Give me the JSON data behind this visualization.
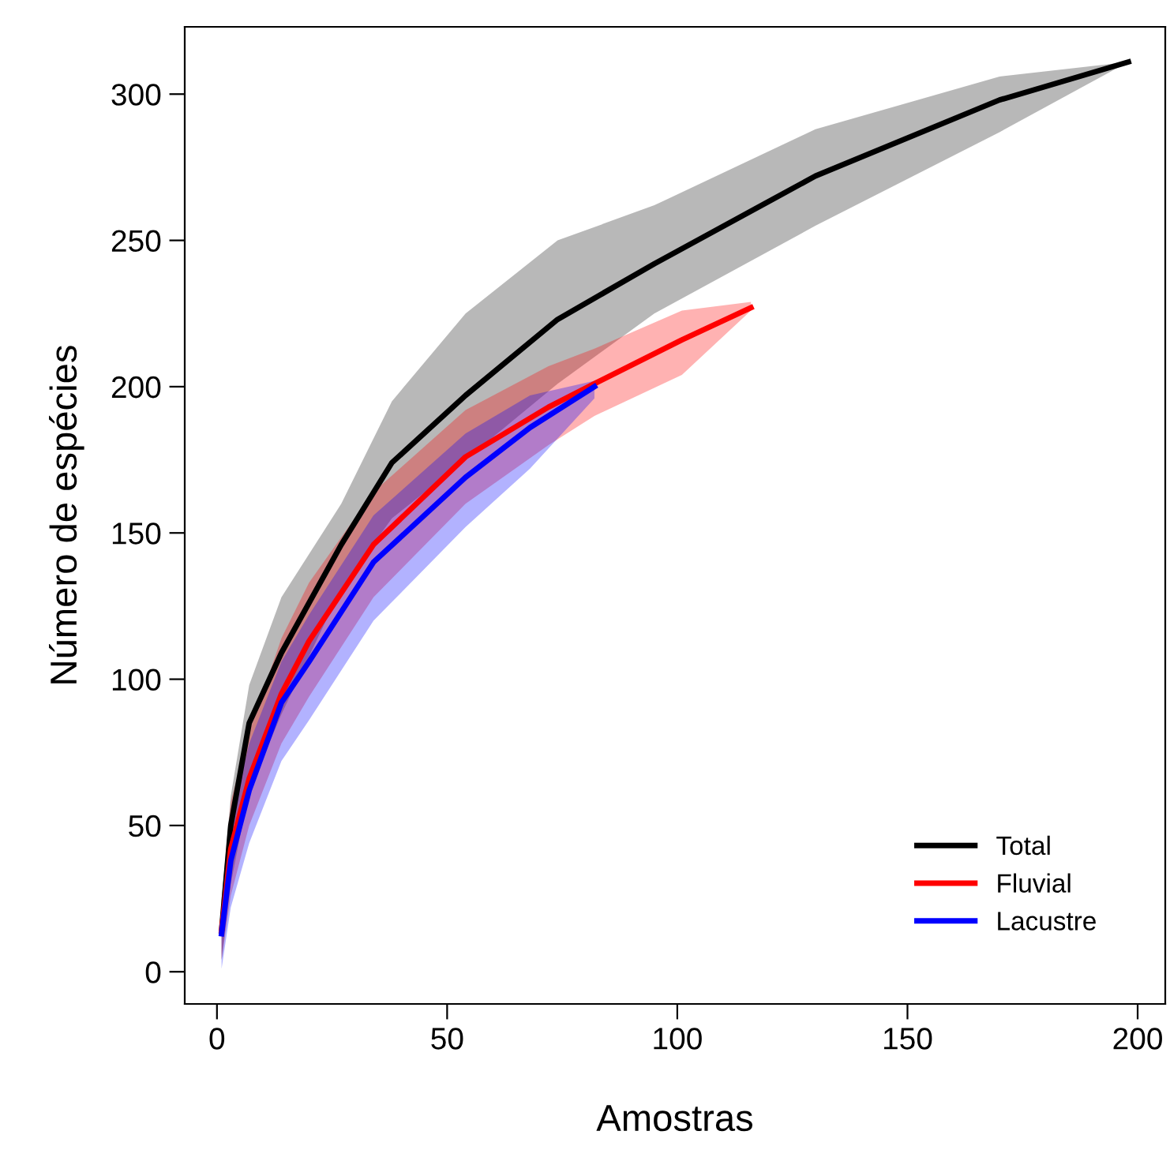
{
  "chart_data": {
    "type": "line",
    "xlabel": "Amostras",
    "ylabel": "Número de espécies",
    "xlim": [
      -7,
      206
    ],
    "ylim": [
      -11,
      323
    ],
    "xticks": [
      0,
      50,
      100,
      150,
      200
    ],
    "yticks": [
      0,
      50,
      100,
      150,
      200,
      250,
      300
    ],
    "grid": false,
    "legend": "bottom right",
    "line_style": "solid",
    "marker": "none",
    "series": [
      {
        "name": "Total",
        "color": "#000000",
        "x": [
          1,
          3,
          7,
          14,
          27,
          38,
          54,
          74,
          95,
          130,
          170,
          198
        ],
        "values": [
          14,
          50,
          85,
          109,
          146,
          174,
          197,
          223,
          242,
          272,
          298,
          311
        ],
        "lower": [
          4,
          30,
          62,
          88,
          131,
          155,
          175,
          201,
          225,
          255,
          287,
          311
        ],
        "upper": [
          24,
          60,
          98,
          128,
          160,
          195,
          225,
          250,
          262,
          288,
          306,
          311
        ]
      },
      {
        "name": "Fluvial",
        "color": "#ff0000",
        "x": [
          1,
          3,
          7,
          14,
          20,
          34,
          54,
          72,
          82,
          101,
          116
        ],
        "values": [
          14,
          42,
          66,
          95,
          113,
          146,
          176,
          193,
          201,
          216,
          227
        ],
        "lower": [
          4,
          26,
          50,
          78,
          94,
          128,
          160,
          180,
          190,
          204,
          226
        ],
        "upper": [
          24,
          58,
          82,
          114,
          133,
          164,
          192,
          207,
          213,
          226,
          229
        ]
      },
      {
        "name": "Lacustre",
        "color": "#0000ff",
        "x": [
          1,
          3,
          7,
          14,
          20,
          34,
          54,
          68,
          82
        ],
        "values": [
          13,
          38,
          62,
          92,
          106,
          140,
          169,
          186,
          200
        ],
        "lower": [
          1,
          22,
          44,
          72,
          86,
          120,
          152,
          172,
          196
        ],
        "upper": [
          25,
          52,
          78,
          106,
          122,
          156,
          184,
          197,
          202
        ]
      }
    ]
  }
}
